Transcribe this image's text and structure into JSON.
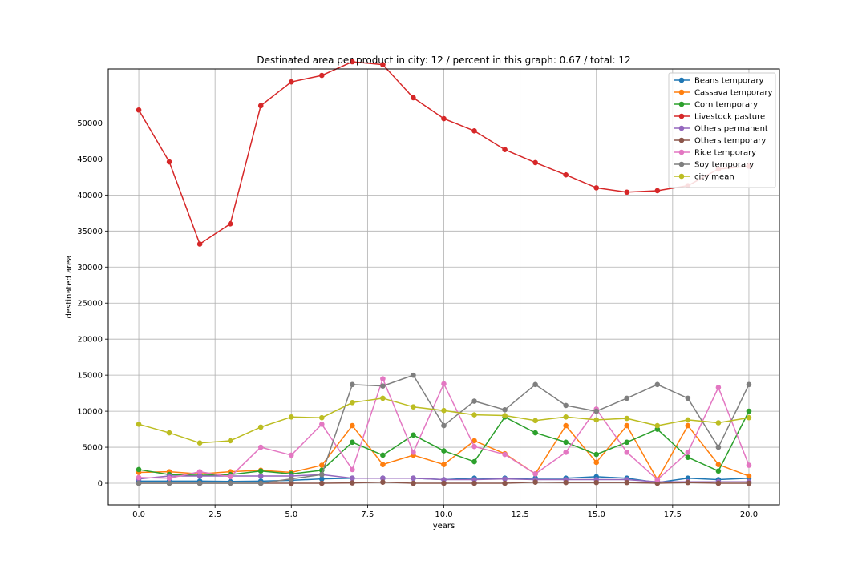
{
  "chart_data": {
    "type": "line",
    "title": "Destinated area per product in city: 12 / percent in this graph: 0.67 / total: 12",
    "xlabel": "years",
    "ylabel": "destinated area",
    "xlim": [
      -1,
      21
    ],
    "ylim": [
      -3000,
      57500
    ],
    "xticks": [
      0.0,
      2.5,
      5.0,
      7.5,
      10.0,
      12.5,
      15.0,
      17.5,
      20.0
    ],
    "xtick_labels": [
      "0.0",
      "2.5",
      "5.0",
      "7.5",
      "10.0",
      "12.5",
      "15.0",
      "17.5",
      "20.0"
    ],
    "yticks": [
      0,
      5000,
      10000,
      15000,
      20000,
      25000,
      30000,
      35000,
      40000,
      45000,
      50000
    ],
    "ytick_labels": [
      "0",
      "5000",
      "10000",
      "15000",
      "20000",
      "25000",
      "30000",
      "35000",
      "40000",
      "45000",
      "50000"
    ],
    "grid": true,
    "legend_position": "top-right",
    "x": [
      0,
      1,
      2,
      3,
      4,
      5,
      6,
      7,
      8,
      9,
      10,
      11,
      12,
      13,
      14,
      15,
      16,
      17,
      18,
      19,
      20
    ],
    "series": [
      {
        "name": "Beans temporary",
        "color": "#1f77b4",
        "values": [
          300,
          300,
          300,
          250,
          300,
          400,
          600,
          700,
          700,
          700,
          500,
          700,
          700,
          700,
          700,
          900,
          700,
          100,
          700,
          500,
          700
        ]
      },
      {
        "name": "Cassava temporary",
        "color": "#ff7f0e",
        "values": [
          1500,
          1600,
          1300,
          1600,
          1800,
          1500,
          2500,
          8000,
          2600,
          3900,
          2600,
          5900,
          4100,
          1300,
          8000,
          2900,
          8000,
          500,
          8000,
          2600,
          1000
        ]
      },
      {
        "name": "Corn temporary",
        "color": "#2ca02c",
        "values": [
          1900,
          1200,
          1100,
          1200,
          1700,
          1300,
          1800,
          5700,
          3900,
          6700,
          4500,
          3000,
          9200,
          7000,
          5700,
          4000,
          5700,
          7500,
          3600,
          1700,
          10000
        ]
      },
      {
        "name": "Livestock pasture",
        "color": "#d62728",
        "values": [
          51800,
          44600,
          33200,
          36000,
          52400,
          55700,
          56600,
          58500,
          58100,
          53500,
          50600,
          48900,
          46300,
          44500,
          42800,
          41000,
          40400,
          40600,
          41300,
          43600,
          44000
        ]
      },
      {
        "name": "Others permanent",
        "color": "#9467bd",
        "values": [
          600,
          1000,
          1000,
          1000,
          1000,
          1000,
          1200,
          700,
          700,
          700,
          500,
          500,
          600,
          500,
          500,
          500,
          500,
          200,
          200,
          200,
          200
        ]
      },
      {
        "name": "Others temporary",
        "color": "#8c564b",
        "values": [
          0,
          0,
          0,
          0,
          0,
          0,
          0,
          50,
          150,
          0,
          0,
          0,
          0,
          150,
          100,
          100,
          100,
          0,
          100,
          0,
          0
        ]
      },
      {
        "name": "Rice temporary",
        "color": "#e377c2",
        "values": [
          800,
          700,
          1600,
          900,
          5000,
          3900,
          8200,
          1900,
          14500,
          4300,
          13800,
          5100,
          4000,
          1300,
          4300,
          10300,
          4300,
          500,
          4300,
          13300,
          2500
        ]
      },
      {
        "name": "Soy temporary",
        "color": "#7f7f7f",
        "values": [
          0,
          0,
          0,
          0,
          0,
          600,
          1200,
          13700,
          13500,
          15000,
          8000,
          11400,
          10200,
          13700,
          10800,
          10000,
          11800,
          13700,
          11800,
          5000,
          13700
        ]
      },
      {
        "name": "city mean",
        "color": "#bcbd22",
        "values": [
          8200,
          7000,
          5600,
          5900,
          7800,
          9200,
          9100,
          11200,
          11800,
          10600,
          10100,
          9500,
          9400,
          8700,
          9200,
          8800,
          9000,
          8000,
          8800,
          8400,
          9100
        ]
      }
    ]
  }
}
